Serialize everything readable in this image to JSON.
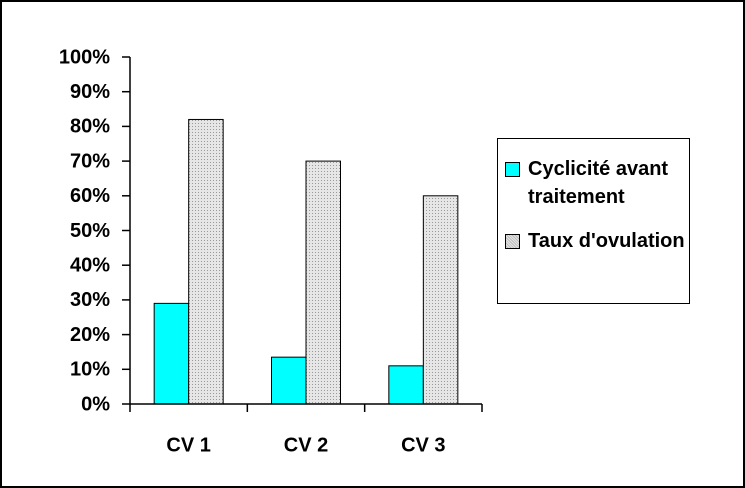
{
  "chart_data": {
    "type": "bar",
    "categories": [
      "CV 1",
      "CV 2",
      "CV 3"
    ],
    "series": [
      {
        "name": "Cyclicité avant traitement",
        "color": "#00ffff",
        "values": [
          29,
          13.5,
          11
        ]
      },
      {
        "name": "Taux d'ovulation",
        "color": "#c8c8c8",
        "values": [
          82,
          70,
          60
        ]
      }
    ],
    "ylim": [
      0,
      100
    ],
    "yticks": [
      {
        "value": 0,
        "label": "0%"
      },
      {
        "value": 10,
        "label": "10%"
      },
      {
        "value": 20,
        "label": "20%"
      },
      {
        "value": 30,
        "label": "30%"
      },
      {
        "value": 40,
        "label": "40%"
      },
      {
        "value": 50,
        "label": "50%"
      },
      {
        "value": 60,
        "label": "60%"
      },
      {
        "value": 70,
        "label": "70%"
      },
      {
        "value": 80,
        "label": "80%"
      },
      {
        "value": 90,
        "label": "90%"
      },
      {
        "value": 100,
        "label": "100%"
      }
    ],
    "legend": "right"
  }
}
